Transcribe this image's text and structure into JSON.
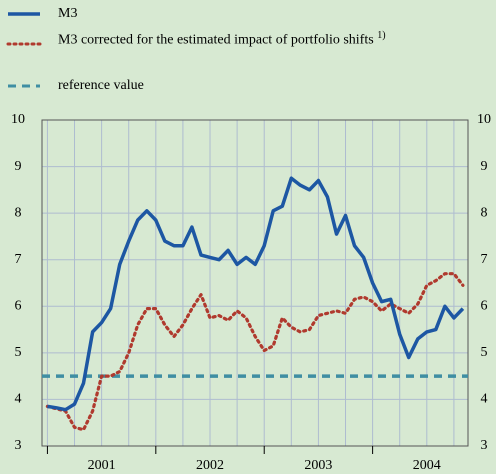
{
  "chart_data": {
    "type": "line",
    "x": [
      2001,
      2001.083,
      2001.167,
      2001.25,
      2001.333,
      2001.417,
      2001.5,
      2001.583,
      2001.667,
      2001.75,
      2001.833,
      2001.917,
      2002,
      2002.083,
      2002.167,
      2002.25,
      2002.333,
      2002.417,
      2002.5,
      2002.583,
      2002.667,
      2002.75,
      2002.833,
      2002.917,
      2003,
      2003.083,
      2003.167,
      2003.25,
      2003.333,
      2003.417,
      2003.5,
      2003.583,
      2003.667,
      2003.75,
      2003.833,
      2003.917,
      2004,
      2004.083,
      2004.167,
      2004.25,
      2004.333,
      2004.417,
      2004.5,
      2004.583,
      2004.667,
      2004.75,
      2004.833
    ],
    "series": [
      {
        "name": "M3",
        "color": "#1d57a3",
        "style": "solid",
        "values": [
          3.85,
          3.82,
          3.78,
          3.9,
          4.35,
          5.45,
          5.65,
          5.95,
          6.9,
          7.4,
          7.85,
          8.05,
          7.85,
          7.4,
          7.3,
          7.3,
          7.7,
          7.1,
          7.05,
          7.0,
          7.2,
          6.9,
          7.05,
          6.9,
          7.3,
          8.05,
          8.15,
          8.75,
          8.6,
          8.5,
          8.7,
          8.35,
          7.55,
          7.95,
          7.3,
          7.05,
          6.5,
          6.1,
          6.15,
          5.4,
          4.9,
          5.3,
          5.45,
          5.5,
          6.0,
          5.75,
          5.95
        ]
      },
      {
        "name": "M3 corrected for the estimated impact of portfolio shifts",
        "footnote": "1)",
        "color": "#b03a2e",
        "style": "dotted",
        "values": [
          3.85,
          3.8,
          3.75,
          3.4,
          3.35,
          3.75,
          4.5,
          4.5,
          4.6,
          5.0,
          5.6,
          5.95,
          5.95,
          5.6,
          5.35,
          5.6,
          5.95,
          6.25,
          5.75,
          5.8,
          5.7,
          5.9,
          5.75,
          5.35,
          5.05,
          5.15,
          5.75,
          5.55,
          5.45,
          5.5,
          5.8,
          5.85,
          5.9,
          5.85,
          6.15,
          6.2,
          6.1,
          5.9,
          6.05,
          5.95,
          5.85,
          6.05,
          6.45,
          6.55,
          6.7,
          6.7,
          6.45
        ]
      }
    ],
    "reference": {
      "name": "reference value",
      "value": 4.5,
      "color": "#3f8ea3",
      "style": "dashed"
    },
    "xlim": [
      2000.95,
      2004.88
    ],
    "xticks": [
      {
        "value": 2001.5,
        "label": "2001"
      },
      {
        "value": 2002.5,
        "label": "2002"
      },
      {
        "value": 2003.5,
        "label": "2003"
      },
      {
        "value": 2004.5,
        "label": "2004"
      }
    ],
    "x_year_marks": [
      2001,
      2002,
      2003,
      2004
    ],
    "x_grid": [
      2001,
      2001.25,
      2001.5,
      2001.75,
      2002,
      2002.25,
      2002.5,
      2002.75,
      2003,
      2003.25,
      2003.5,
      2003.75,
      2004,
      2004.25,
      2004.5,
      2004.75
    ],
    "ylim": [
      3,
      10
    ],
    "yticks": [
      3,
      4,
      5,
      6,
      7,
      8,
      9,
      10
    ],
    "grid": true
  }
}
